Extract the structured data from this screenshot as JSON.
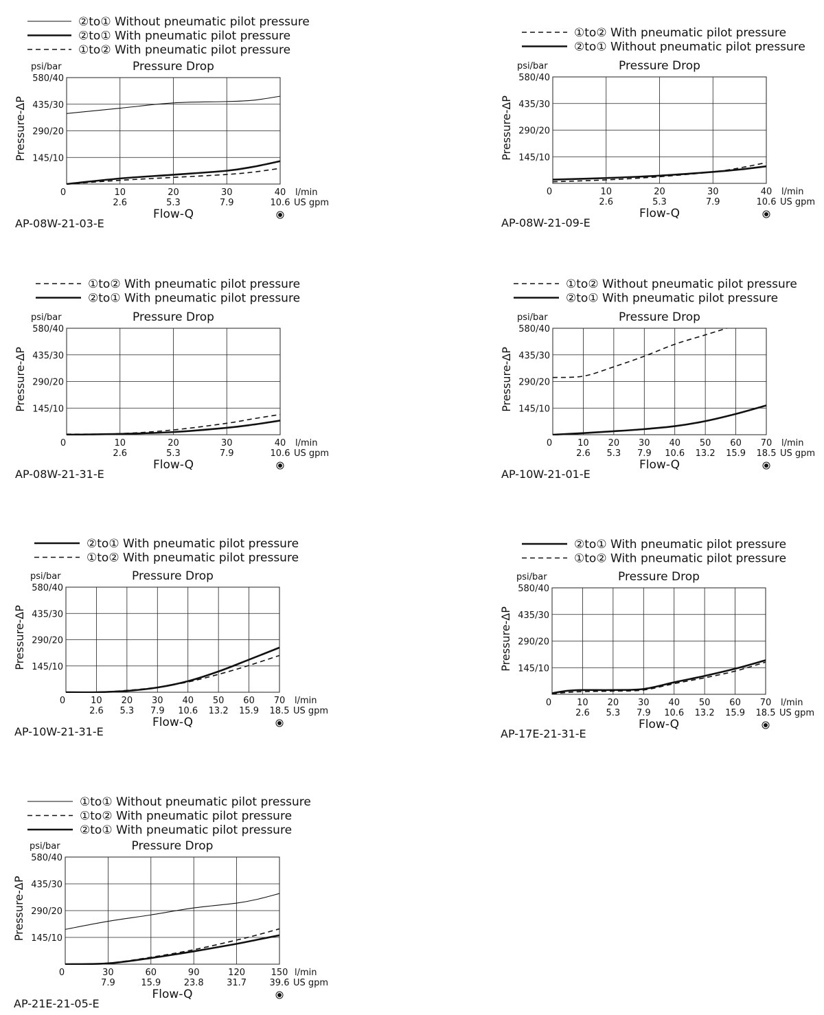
{
  "symbols": {
    "c1": "①",
    "c2": "②"
  },
  "chart_data": [
    {
      "type": "line",
      "code": "AP-08W-21-03-E",
      "title": "Pressure Drop",
      "ylabel": "Pressure-ΔP",
      "yunit": "psi/bar",
      "xlabel": "Flow-Q",
      "xunit_primary": "l/min",
      "xunit_secondary": "US gpm",
      "origin_label": "0",
      "xlim": [
        0,
        40
      ],
      "ylim": [
        0,
        40
      ],
      "x_ticks": [
        {
          "value": 10,
          "label": "10",
          "sub": "2.6"
        },
        {
          "value": 20,
          "label": "20",
          "sub": "5.3"
        },
        {
          "value": 30,
          "label": "30",
          "sub": "7.9"
        },
        {
          "value": 40,
          "label": "40",
          "sub": "10.6"
        }
      ],
      "y_ticks": [
        {
          "value": 10,
          "label": "145/10"
        },
        {
          "value": 20,
          "label": "290/20"
        },
        {
          "value": 30,
          "label": "435/30"
        },
        {
          "value": 40,
          "label": "580/40"
        }
      ],
      "grid": true,
      "legend": [
        {
          "style": "thin",
          "from": "②",
          "to": "①",
          "text": "Without pneumatic pilot pressure"
        },
        {
          "style": "thick",
          "from": "②",
          "to": "①",
          "text": "With pneumatic pilot pressure"
        },
        {
          "style": "dashed",
          "from": "①",
          "to": "②",
          "text": "With pneumatic pilot pressure"
        }
      ],
      "series": [
        {
          "style": "thin",
          "points": [
            [
              0,
              26.5
            ],
            [
              10,
              28.5
            ],
            [
              20,
              30.5
            ],
            [
              30,
              31
            ],
            [
              35,
              31.5
            ],
            [
              40,
              33
            ]
          ]
        },
        {
          "style": "thick",
          "points": [
            [
              0,
              0
            ],
            [
              10,
              2.1
            ],
            [
              20,
              3.5
            ],
            [
              30,
              5
            ],
            [
              35,
              6.5
            ],
            [
              40,
              8.6
            ]
          ]
        },
        {
          "style": "dashed",
          "points": [
            [
              0,
              0
            ],
            [
              10,
              1.4
            ],
            [
              20,
              2.5
            ],
            [
              30,
              3.6
            ],
            [
              35,
              4.5
            ],
            [
              40,
              5.9
            ]
          ]
        }
      ]
    },
    {
      "type": "line",
      "code": "AP-08W-21-09-E",
      "title": "Pressure Drop",
      "ylabel": "Pressure-ΔP",
      "yunit": "psi/bar",
      "xlabel": "Flow-Q",
      "xunit_primary": "l/min",
      "xunit_secondary": "US gpm",
      "origin_label": "0",
      "xlim": [
        0,
        40
      ],
      "ylim": [
        0,
        40
      ],
      "x_ticks": [
        {
          "value": 10,
          "label": "10",
          "sub": "2.6"
        },
        {
          "value": 20,
          "label": "20",
          "sub": "5.3"
        },
        {
          "value": 30,
          "label": "30",
          "sub": "7.9"
        },
        {
          "value": 40,
          "label": "40",
          "sub": "10.6"
        }
      ],
      "y_ticks": [
        {
          "value": 10,
          "label": "145/10"
        },
        {
          "value": 20,
          "label": "290/20"
        },
        {
          "value": 30,
          "label": "435/30"
        },
        {
          "value": 40,
          "label": "580/40"
        }
      ],
      "grid": true,
      "legend": [
        {
          "style": "dashed",
          "from": "①",
          "to": "②",
          "text": "With pneumatic pilot pressure"
        },
        {
          "style": "thick",
          "from": "②",
          "to": "①",
          "text": "Without pneumatic pilot pressure"
        }
      ],
      "series": [
        {
          "style": "dashed",
          "points": [
            [
              0,
              0.6
            ],
            [
              10,
              1.3
            ],
            [
              20,
              2.5
            ],
            [
              30,
              4.3
            ],
            [
              35,
              5.8
            ],
            [
              40,
              7.8
            ]
          ]
        },
        {
          "style": "thick",
          "points": [
            [
              0,
              1.4
            ],
            [
              10,
              2
            ],
            [
              20,
              2.9
            ],
            [
              30,
              4.3
            ],
            [
              35,
              5.2
            ],
            [
              40,
              6.4
            ]
          ]
        }
      ]
    },
    {
      "type": "line",
      "code": "AP-08W-21-31-E",
      "title": "Pressure Drop",
      "ylabel": "Pressure-ΔP",
      "yunit": "psi/bar",
      "xlabel": "Flow-Q",
      "xunit_primary": "l/min",
      "xunit_secondary": "US gpm",
      "origin_label": "0",
      "xlim": [
        0,
        40
      ],
      "ylim": [
        0,
        40
      ],
      "x_ticks": [
        {
          "value": 10,
          "label": "10",
          "sub": "2.6"
        },
        {
          "value": 20,
          "label": "20",
          "sub": "5.3"
        },
        {
          "value": 30,
          "label": "30",
          "sub": "7.9"
        },
        {
          "value": 40,
          "label": "40",
          "sub": "10.6"
        }
      ],
      "y_ticks": [
        {
          "value": 10,
          "label": "145/10"
        },
        {
          "value": 20,
          "label": "290/20"
        },
        {
          "value": 30,
          "label": "435/30"
        },
        {
          "value": 40,
          "label": "580/40"
        }
      ],
      "grid": true,
      "legend": [
        {
          "style": "dashed",
          "from": "①",
          "to": "②",
          "text": "With pneumatic pilot pressure"
        },
        {
          "style": "thick",
          "from": "②",
          "to": "①",
          "text": "With pneumatic pilot pressure"
        }
      ],
      "series": [
        {
          "style": "dashed",
          "points": [
            [
              0,
              0.2
            ],
            [
              10,
              0.4
            ],
            [
              20,
              1.8
            ],
            [
              30,
              4.3
            ],
            [
              35,
              6
            ],
            [
              40,
              7.6
            ]
          ]
        },
        {
          "style": "thick",
          "points": [
            [
              0,
              0
            ],
            [
              10,
              0.3
            ],
            [
              20,
              1
            ],
            [
              30,
              2.6
            ],
            [
              35,
              3.8
            ],
            [
              40,
              5.3
            ]
          ]
        }
      ]
    },
    {
      "type": "line",
      "code": "AP-10W-21-01-E",
      "title": "Pressure Drop",
      "ylabel": "Pressure-ΔP",
      "yunit": "psi/bar",
      "xlabel": "Flow-Q",
      "xunit_primary": "l/min",
      "xunit_secondary": "US gpm",
      "origin_label": "0",
      "xlim": [
        0,
        70
      ],
      "ylim": [
        0,
        40
      ],
      "x_ticks": [
        {
          "value": 10,
          "label": "10",
          "sub": "2.6"
        },
        {
          "value": 20,
          "label": "20",
          "sub": "5.3"
        },
        {
          "value": 30,
          "label": "30",
          "sub": "7.9"
        },
        {
          "value": 40,
          "label": "40",
          "sub": "10.6"
        },
        {
          "value": 50,
          "label": "50",
          "sub": "13.2"
        },
        {
          "value": 60,
          "label": "60",
          "sub": "15.9"
        },
        {
          "value": 70,
          "label": "70",
          "sub": "18.5"
        }
      ],
      "y_ticks": [
        {
          "value": 10,
          "label": "145/10"
        },
        {
          "value": 20,
          "label": "290/20"
        },
        {
          "value": 30,
          "label": "435/30"
        },
        {
          "value": 40,
          "label": "580/40"
        }
      ],
      "grid": true,
      "legend": [
        {
          "style": "dashed",
          "from": "①",
          "to": "②",
          "text": "Without pneumatic pilot pressure"
        },
        {
          "style": "thick",
          "from": "②",
          "to": "①",
          "text": "With pneumatic pilot pressure"
        }
      ],
      "series": [
        {
          "style": "dashed",
          "points": [
            [
              0,
              21.5
            ],
            [
              10,
              22
            ],
            [
              20,
              25.5
            ],
            [
              30,
              29.5
            ],
            [
              40,
              34
            ],
            [
              50,
              37.5
            ],
            [
              57,
              40
            ]
          ]
        },
        {
          "style": "thick",
          "points": [
            [
              0,
              0
            ],
            [
              10,
              0.6
            ],
            [
              20,
              1.3
            ],
            [
              30,
              2.1
            ],
            [
              40,
              3.2
            ],
            [
              50,
              5.1
            ],
            [
              60,
              7.8
            ],
            [
              70,
              11
            ]
          ]
        }
      ]
    },
    {
      "type": "line",
      "code": "AP-10W-21-31-E",
      "title": "Pressure Drop",
      "ylabel": "Pressure-ΔP",
      "yunit": "psi/bar",
      "xlabel": "Flow-Q",
      "xunit_primary": "l/min",
      "xunit_secondary": "US gpm",
      "origin_label": "0",
      "xlim": [
        0,
        70
      ],
      "ylim": [
        0,
        40
      ],
      "x_ticks": [
        {
          "value": 10,
          "label": "10",
          "sub": "2.6"
        },
        {
          "value": 20,
          "label": "20",
          "sub": "5.3"
        },
        {
          "value": 30,
          "label": "30",
          "sub": "7.9"
        },
        {
          "value": 40,
          "label": "40",
          "sub": "10.6"
        },
        {
          "value": 50,
          "label": "50",
          "sub": "13.2"
        },
        {
          "value": 60,
          "label": "60",
          "sub": "15.9"
        },
        {
          "value": 70,
          "label": "70",
          "sub": "18.5"
        }
      ],
      "y_ticks": [
        {
          "value": 10,
          "label": "145/10"
        },
        {
          "value": 20,
          "label": "290/20"
        },
        {
          "value": 30,
          "label": "435/30"
        },
        {
          "value": 40,
          "label": "580/40"
        }
      ],
      "grid": true,
      "legend": [
        {
          "style": "thick",
          "from": "②",
          "to": "①",
          "text": "With pneumatic pilot pressure"
        },
        {
          "style": "dashed",
          "from": "①",
          "to": "②",
          "text": "With pneumatic pilot pressure"
        }
      ],
      "series": [
        {
          "style": "thick",
          "points": [
            [
              0,
              0
            ],
            [
              10,
              0
            ],
            [
              20,
              0.5
            ],
            [
              30,
              1.8
            ],
            [
              40,
              4.2
            ],
            [
              50,
              7.9
            ],
            [
              60,
              12.4
            ],
            [
              70,
              17
            ]
          ]
        },
        {
          "style": "dashed",
          "points": [
            [
              0,
              0
            ],
            [
              10,
              0
            ],
            [
              20,
              0.7
            ],
            [
              30,
              1.9
            ],
            [
              40,
              3.9
            ],
            [
              50,
              6.8
            ],
            [
              60,
              10.2
            ],
            [
              70,
              14
            ]
          ]
        }
      ]
    },
    {
      "type": "line",
      "code": "AP-17E-21-31-E",
      "title": "Pressure Drop",
      "ylabel": "Pressure-ΔP",
      "yunit": "psi/bar",
      "xlabel": "Flow-Q",
      "xunit_primary": "l/min",
      "xunit_secondary": "US gpm",
      "origin_label": "0",
      "xlim": [
        0,
        70
      ],
      "ylim": [
        0,
        40
      ],
      "x_ticks": [
        {
          "value": 10,
          "label": "10",
          "sub": "2.6"
        },
        {
          "value": 20,
          "label": "20",
          "sub": "5.3"
        },
        {
          "value": 30,
          "label": "30",
          "sub": "7.9"
        },
        {
          "value": 40,
          "label": "40",
          "sub": "10.6"
        },
        {
          "value": 50,
          "label": "50",
          "sub": "13.2"
        },
        {
          "value": 60,
          "label": "60",
          "sub": "15.9"
        },
        {
          "value": 70,
          "label": "70",
          "sub": "18.5"
        }
      ],
      "y_ticks": [
        {
          "value": 10,
          "label": "145/10"
        },
        {
          "value": 20,
          "label": "290/20"
        },
        {
          "value": 30,
          "label": "435/30"
        },
        {
          "value": 40,
          "label": "580/40"
        }
      ],
      "grid": true,
      "legend": [
        {
          "style": "thick",
          "from": "②",
          "to": "①",
          "text": "With pneumatic pilot pressure"
        },
        {
          "style": "dashed",
          "from": "①",
          "to": "②",
          "text": "With pneumatic pilot pressure"
        }
      ],
      "series": [
        {
          "style": "thick",
          "points": [
            [
              0,
              0.4
            ],
            [
              5,
              1.3
            ],
            [
              10,
              1.6
            ],
            [
              20,
              1.6
            ],
            [
              30,
              2
            ],
            [
              40,
              4.5
            ],
            [
              50,
              6.9
            ],
            [
              60,
              9.6
            ],
            [
              70,
              12.8
            ]
          ]
        },
        {
          "style": "dashed",
          "points": [
            [
              0,
              0.2
            ],
            [
              5,
              0.7
            ],
            [
              10,
              1
            ],
            [
              20,
              1.2
            ],
            [
              30,
              1.6
            ],
            [
              40,
              4
            ],
            [
              50,
              6.2
            ],
            [
              60,
              8.7
            ],
            [
              70,
              12.1
            ]
          ]
        }
      ]
    },
    {
      "type": "line",
      "code": "AP-21E-21-05-E",
      "title": "Pressure Drop",
      "ylabel": "Pressure-ΔP",
      "yunit": "psi/bar",
      "xlabel": "Flow-Q",
      "xunit_primary": "l/min",
      "xunit_secondary": "US gpm",
      "origin_label": "0",
      "xlim": [
        0,
        150
      ],
      "ylim": [
        0,
        40
      ],
      "x_ticks": [
        {
          "value": 30,
          "label": "30",
          "sub": "7.9"
        },
        {
          "value": 60,
          "label": "60",
          "sub": "15.9"
        },
        {
          "value": 90,
          "label": "90",
          "sub": "23.8"
        },
        {
          "value": 120,
          "label": "120",
          "sub": "31.7"
        },
        {
          "value": 150,
          "label": "150",
          "sub": "39.6"
        }
      ],
      "y_ticks": [
        {
          "value": 10,
          "label": "145/10"
        },
        {
          "value": 20,
          "label": "290/20"
        },
        {
          "value": 30,
          "label": "435/30"
        },
        {
          "value": 40,
          "label": "580/40"
        }
      ],
      "grid": true,
      "legend": [
        {
          "style": "thin",
          "from": "①",
          "to": "①",
          "text": "Without pneumatic pilot pressure"
        },
        {
          "style": "dashed",
          "from": "①",
          "to": "②",
          "text": "With pneumatic pilot pressure"
        },
        {
          "style": "thick",
          "from": "②",
          "to": "①",
          "text": "With pneumatic pilot pressure"
        }
      ],
      "series": [
        {
          "style": "thin",
          "points": [
            [
              0,
              13
            ],
            [
              30,
              16
            ],
            [
              60,
              18.4
            ],
            [
              90,
              21
            ],
            [
              120,
              22.8
            ],
            [
              135,
              24.3
            ],
            [
              150,
              26.4
            ]
          ]
        },
        {
          "style": "dashed",
          "points": [
            [
              0,
              0
            ],
            [
              30,
              0.4
            ],
            [
              60,
              2.6
            ],
            [
              90,
              5.4
            ],
            [
              120,
              9
            ],
            [
              135,
              11
            ],
            [
              150,
              13.2
            ]
          ]
        },
        {
          "style": "thick",
          "points": [
            [
              0,
              0
            ],
            [
              30,
              0.3
            ],
            [
              60,
              2.3
            ],
            [
              90,
              4.8
            ],
            [
              120,
              7.6
            ],
            [
              135,
              9.2
            ],
            [
              150,
              10.8
            ]
          ]
        }
      ]
    }
  ]
}
